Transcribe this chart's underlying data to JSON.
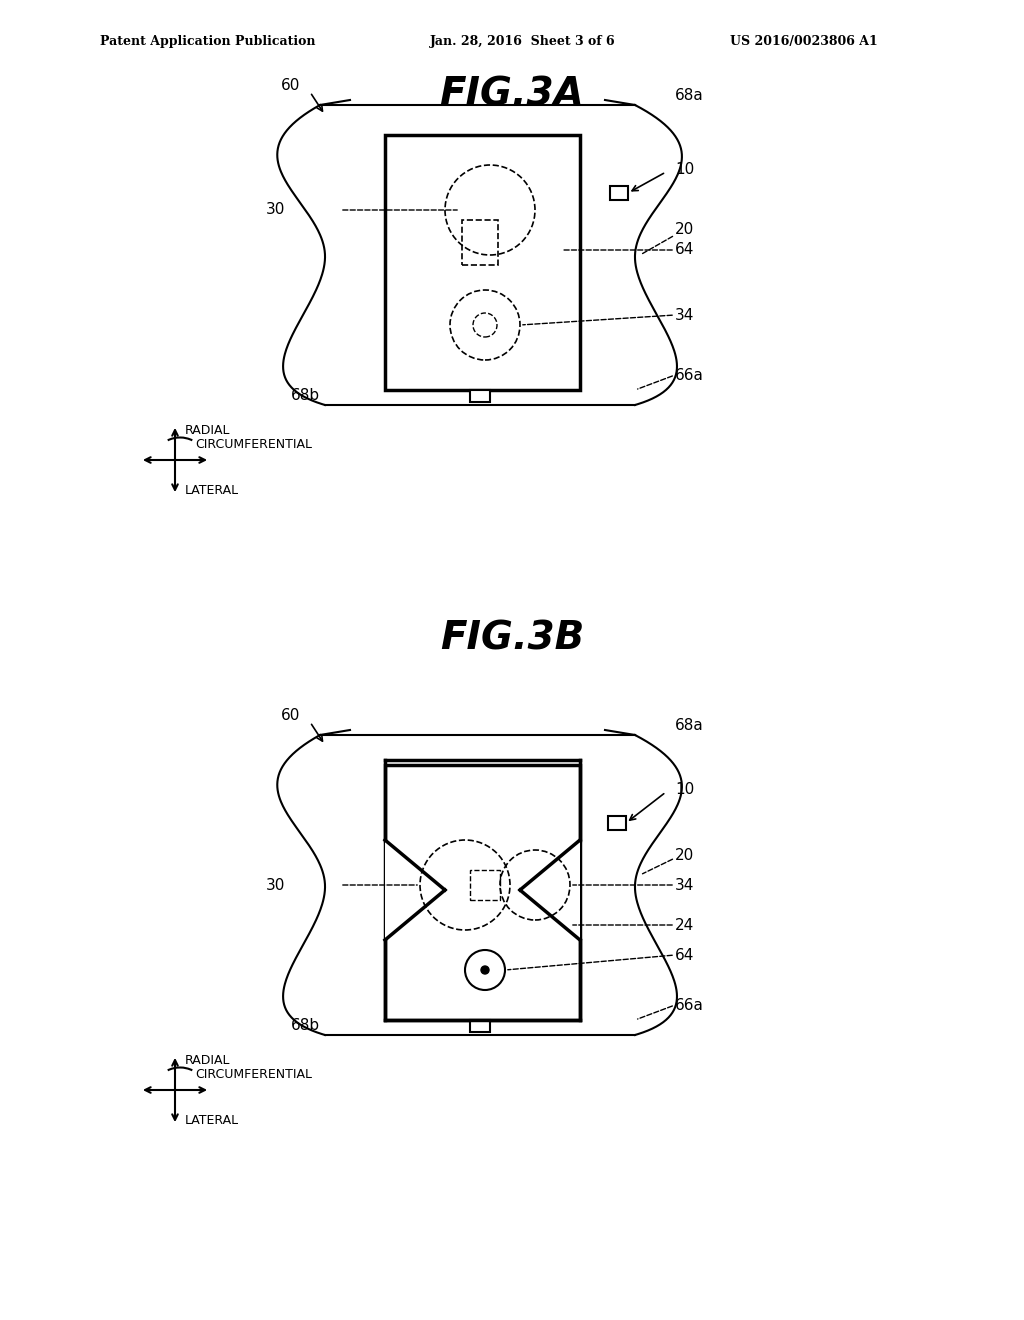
{
  "header_left": "Patent Application Publication",
  "header_center": "Jan. 28, 2016  Sheet 3 of 6",
  "header_right": "US 2016/0023806 A1",
  "fig3a_title": "FIG.3A",
  "fig3b_title": "FIG.3B",
  "bg_color": "#ffffff",
  "line_color": "#000000",
  "dashed_color": "#000000"
}
